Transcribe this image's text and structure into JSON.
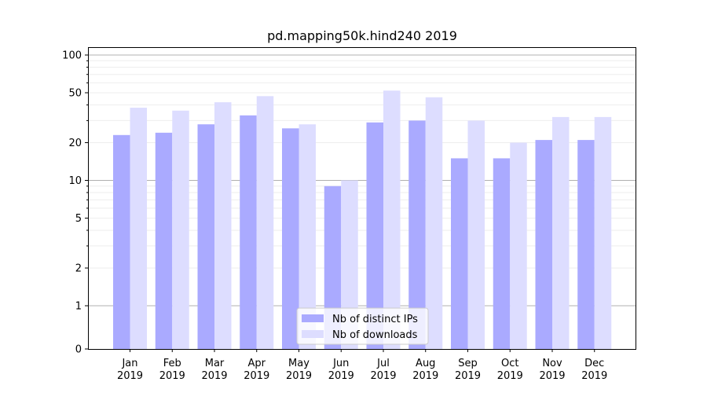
{
  "chart_data": {
    "type": "bar",
    "title": "pd.mapping50k.hind240 2019",
    "xlabel": "",
    "ylabel": "",
    "y_scale": "symlog",
    "ylim": [
      0,
      110
    ],
    "y_ticks": [
      0,
      1,
      2,
      5,
      10,
      20,
      50,
      100
    ],
    "categories": [
      {
        "month": "Jan",
        "year": "2019"
      },
      {
        "month": "Feb",
        "year": "2019"
      },
      {
        "month": "Mar",
        "year": "2019"
      },
      {
        "month": "Apr",
        "year": "2019"
      },
      {
        "month": "May",
        "year": "2019"
      },
      {
        "month": "Jun",
        "year": "2019"
      },
      {
        "month": "Jul",
        "year": "2019"
      },
      {
        "month": "Aug",
        "year": "2019"
      },
      {
        "month": "Sep",
        "year": "2019"
      },
      {
        "month": "Oct",
        "year": "2019"
      },
      {
        "month": "Nov",
        "year": "2019"
      },
      {
        "month": "Dec",
        "year": "2019"
      }
    ],
    "series": [
      {
        "name": "Nb of distinct IPs",
        "color": "#aaaaff",
        "values": [
          23,
          24,
          28,
          33,
          26,
          9,
          29,
          30,
          15,
          15,
          21,
          21
        ]
      },
      {
        "name": "Nb of downloads",
        "color": "#ddddff",
        "values": [
          38,
          36,
          42,
          47,
          28,
          10,
          52,
          46,
          30,
          20,
          32,
          32
        ]
      }
    ],
    "legend_position": "lower center",
    "grid": true
  }
}
